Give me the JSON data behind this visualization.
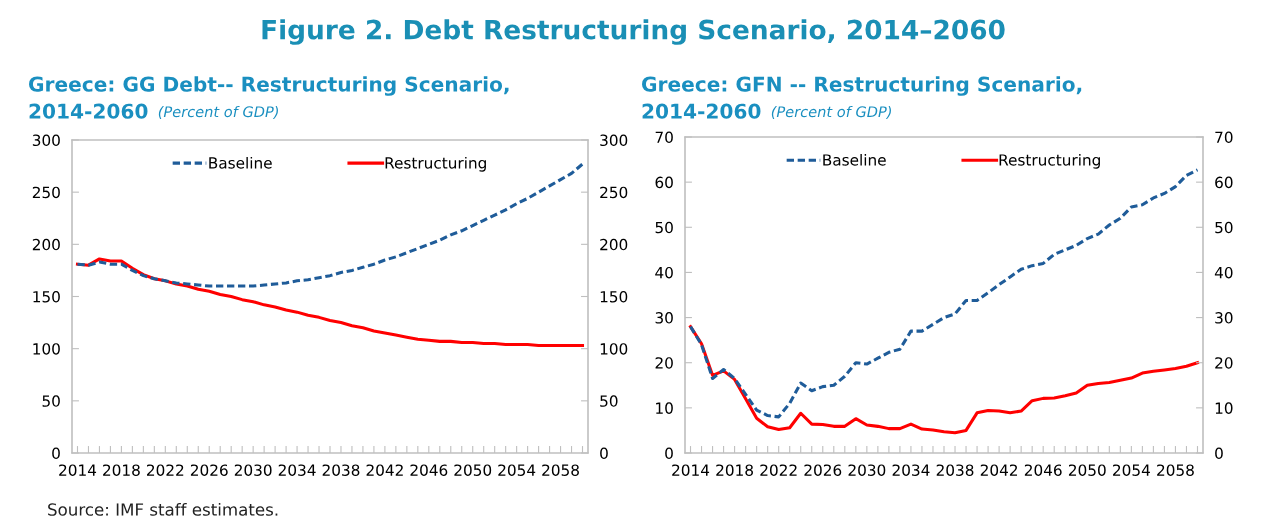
{
  "chart_data": [
    {
      "type": "line",
      "title": "Greece: GG Debt-- Restructuring Scenario,\n2014-2060",
      "subtitle": "(Percent of GDP)",
      "annotations": [
        "Figure 2. Debt Restructuring Scenario, 2014–2060",
        "Source: IMF staff estimates."
      ],
      "categories": [
        "2014",
        null,
        null,
        null,
        "2018",
        null,
        null,
        null,
        "2022",
        null,
        null,
        null,
        "2026",
        null,
        null,
        null,
        "2030",
        null,
        null,
        null,
        "2034",
        null,
        null,
        null,
        "2038",
        null,
        null,
        null,
        "2042",
        null,
        null,
        null,
        "2046",
        null,
        null,
        null,
        "2050",
        null,
        null,
        null,
        "2054",
        null,
        null,
        null,
        "2058",
        null,
        null
      ],
      "series": [
        {
          "name": "Baseline",
          "color": "#1f5c99",
          "line_style": "dashed",
          "values": [
            181,
            180,
            183,
            181,
            181,
            175,
            170,
            167,
            165,
            163,
            162,
            161,
            160,
            160,
            160,
            160,
            160,
            161,
            162,
            163,
            165,
            166,
            168,
            170,
            173,
            175,
            178,
            181,
            185,
            188,
            192,
            196,
            200,
            204,
            209,
            213,
            218,
            223,
            228,
            233,
            239,
            244,
            250,
            256,
            262,
            268,
            277
          ]
        },
        {
          "name": "Restructuring",
          "color": "#ff0000",
          "line_style": "solid",
          "values": [
            181,
            180,
            186,
            184,
            184,
            177,
            171,
            167,
            165,
            162,
            160,
            157,
            155,
            152,
            150,
            147,
            145,
            142,
            140,
            137,
            135,
            132,
            130,
            127,
            125,
            122,
            120,
            117,
            115,
            113,
            111,
            109,
            108,
            107,
            107,
            106,
            106,
            105,
            105,
            104,
            104,
            104,
            103,
            103,
            103,
            103,
            103
          ]
        }
      ],
      "ylim": [
        0,
        300
      ],
      "yticks": [
        0,
        50,
        100,
        150,
        200,
        250,
        300
      ],
      "y2lim": [
        0,
        300
      ],
      "y2ticks": [
        0,
        50,
        100,
        150,
        200,
        250,
        300
      ],
      "legend": "top",
      "grid": false
    },
    {
      "type": "line",
      "title": "Greece: GFN -- Restructuring Scenario,\n2014-2060",
      "subtitle": "(Percent of GDP)",
      "categories": [
        "2014",
        null,
        null,
        null,
        "2018",
        null,
        null,
        null,
        "2022",
        null,
        null,
        null,
        "2026",
        null,
        null,
        null,
        "2030",
        null,
        null,
        null,
        "2034",
        null,
        null,
        null,
        "2038",
        null,
        null,
        null,
        "2042",
        null,
        null,
        null,
        "2046",
        null,
        null,
        null,
        "2050",
        null,
        null,
        null,
        "2054",
        null,
        null,
        null,
        "2058",
        null,
        null
      ],
      "series": [
        {
          "name": "Baseline",
          "color": "#1f5c99",
          "line_style": "dashed",
          "values": [
            28,
            24,
            16.5,
            18.5,
            16.5,
            13,
            9.5,
            8.3,
            8,
            11,
            15.5,
            13.8,
            14.7,
            15,
            17,
            20,
            19.7,
            21,
            22.3,
            23,
            27,
            27,
            28.5,
            30,
            30.8,
            33.8,
            33.8,
            35.5,
            37.3,
            39,
            40.7,
            41.5,
            42,
            44,
            45,
            46,
            47.5,
            48.5,
            50.5,
            52,
            54.5,
            55,
            56.5,
            57.5,
            59,
            61.5,
            62.7
          ]
        },
        {
          "name": "Restructuring",
          "color": "#ff0000",
          "line_style": "solid",
          "values": [
            28,
            24.2,
            17.2,
            18.2,
            16.3,
            12,
            7.7,
            5.8,
            5.2,
            5.6,
            8.8,
            6.4,
            6.3,
            5.9,
            5.9,
            7.6,
            6.2,
            5.9,
            5.4,
            5.4,
            6.4,
            5.3,
            5.1,
            4.7,
            4.5,
            5.0,
            8.9,
            9.4,
            9.3,
            8.9,
            9.3,
            11.6,
            12.1,
            12.2,
            12.7,
            13.3,
            15,
            15.4,
            15.6,
            16.1,
            16.6,
            17.7,
            18.1,
            18.4,
            18.7,
            19.2,
            20
          ]
        }
      ],
      "ylim": [
        0,
        70
      ],
      "yticks": [
        0,
        10,
        20,
        30,
        40,
        50,
        60,
        70
      ],
      "y2lim": [
        0,
        70
      ],
      "y2ticks": [
        0,
        10,
        20,
        30,
        40,
        50,
        60,
        70
      ],
      "legend": "top",
      "grid": false
    }
  ]
}
